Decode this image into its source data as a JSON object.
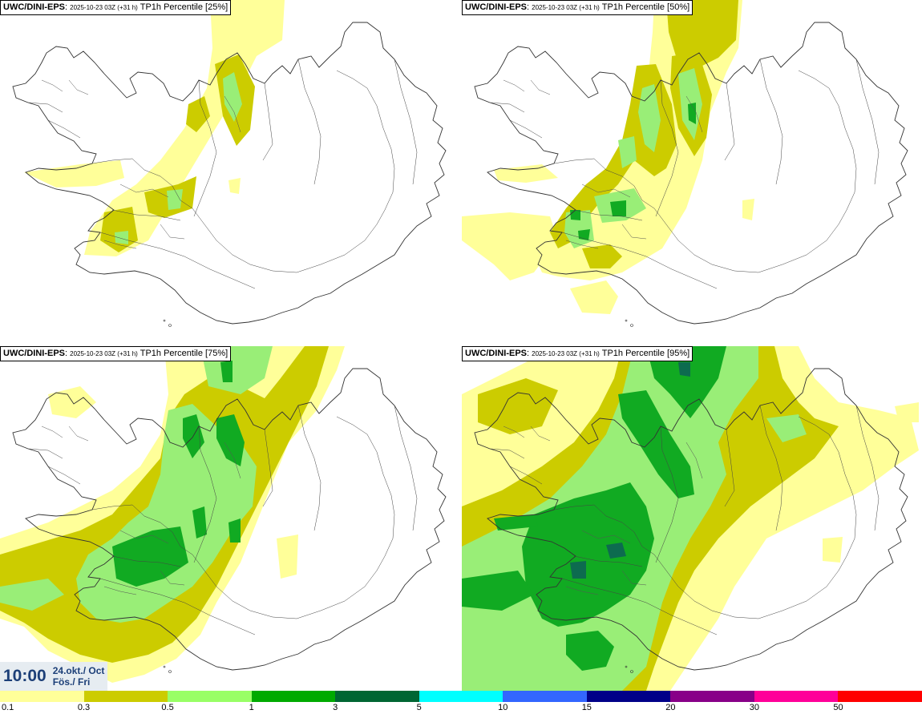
{
  "panels": [
    {
      "source": "UWC/DINI-EPS",
      "run": "2025-10-23 03Z (+31 h)",
      "field": "TP1h Percentile [25%]"
    },
    {
      "source": "UWC/DINI-EPS",
      "run": "2025-10-23 03Z (+31 h)",
      "field": "TP1h Percentile [50%]"
    },
    {
      "source": "UWC/DINI-EPS",
      "run": "2025-10-23 03Z (+31 h)",
      "field": "TP1h Percentile [75%]"
    },
    {
      "source": "UWC/DINI-EPS",
      "run": "2025-10-23 03Z (+31 h)",
      "field": "TP1h Percentile [95%]"
    }
  ],
  "valid_time": {
    "time": "10:00",
    "date_line1": "24.okt./ Oct",
    "date_line2": "Fös./ Fri"
  },
  "legend": {
    "labels": [
      "0.1",
      "0.3",
      "0.5",
      "1",
      "3",
      "5",
      "10",
      "15",
      "20",
      "30",
      "50"
    ],
    "colors": [
      "#ffff99",
      "#cccc00",
      "#99ff66",
      "#00aa00",
      "#006633",
      "#00ffff",
      "#3366ff",
      "#000088",
      "#880088",
      "#ff0099",
      "#ff0000"
    ]
  },
  "colors": {
    "c1": "#ffff99",
    "c2": "#cccc00",
    "c3": "#99ee77",
    "c4": "#11aa22",
    "c5": "#0d6b4f",
    "coast": "#333333"
  }
}
